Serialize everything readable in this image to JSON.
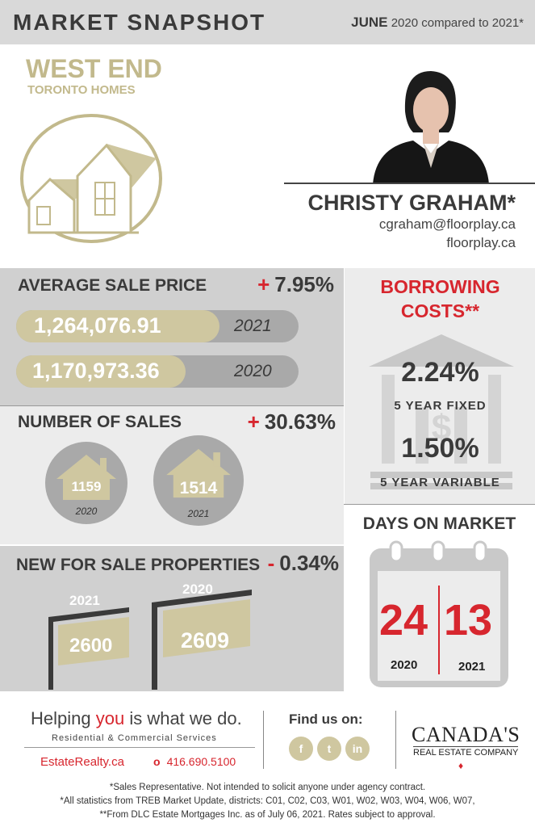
{
  "header": {
    "title": "MARKET SNAPSHOT",
    "month": "JUNE",
    "comparison": "2020 compared to 2021*"
  },
  "area": {
    "title": "WEST END",
    "subtitle": "TORONTO HOMES"
  },
  "agent": {
    "name": "CHRISTY GRAHAM*",
    "email": "cgraham@floorplay.ca",
    "website": "floorplay.ca"
  },
  "average_sale_price": {
    "title": "AVERAGE SALE PRICE",
    "change_sign": "+",
    "change": "7.95%",
    "rows": [
      {
        "value": "1,264,076.91",
        "year": "2021",
        "fill": 0.72
      },
      {
        "value": "1,170,973.36",
        "year": "2020",
        "fill": 0.6
      }
    ]
  },
  "number_of_sales": {
    "title": "NUMBER OF SALES",
    "change_sign": "+",
    "change": "30.63%",
    "items": [
      {
        "value": "1159",
        "year": "2020"
      },
      {
        "value": "1514",
        "year": "2021"
      }
    ]
  },
  "new_for_sale": {
    "title": "NEW FOR SALE PROPERTIES",
    "change_sign": "-",
    "change": "0.34%",
    "items": [
      {
        "value": "2600",
        "year": "2021"
      },
      {
        "value": "2609",
        "year": "2020"
      }
    ]
  },
  "borrowing": {
    "title_line1": "BORROWING",
    "title_line2": "COSTS**",
    "fixed_rate": "2.24%",
    "fixed_label": "5 YEAR FIXED",
    "variable_rate": "1.50%",
    "variable_label": "5 YEAR VARIABLE"
  },
  "days_on_market": {
    "title": "DAYS ON MARKET",
    "left_value": "24",
    "left_year": "2020",
    "right_value": "13",
    "right_year": "2021"
  },
  "footer": {
    "tagline_pre": "Helping ",
    "tagline_you": "you",
    "tagline_post": " is what we do.",
    "services": "Residential & Commercial Services",
    "website": "EstateRealty.ca",
    "phone": "416.690.5100",
    "find_us": "Find us on:",
    "social": [
      "f",
      "t",
      "in"
    ],
    "brand_line1": "CANADA'S",
    "brand_line2": "REAL ESTATE COMPANY",
    "disclaimers": [
      "*Sales Representative. Not intended to solicit anyone under agency contract.",
      "*All statistics from TREB Market Update, districts: C01, C02, C03, W01, W02, W03, W04, W06, W07,",
      "**From DLC Estate Mortgages Inc. as of July 06, 2021. Rates subject to approval."
    ]
  },
  "colors": {
    "accent_gold": "#cfc7a0",
    "accent_red": "#d7262e",
    "panel_grey": "#d0d0d0"
  }
}
